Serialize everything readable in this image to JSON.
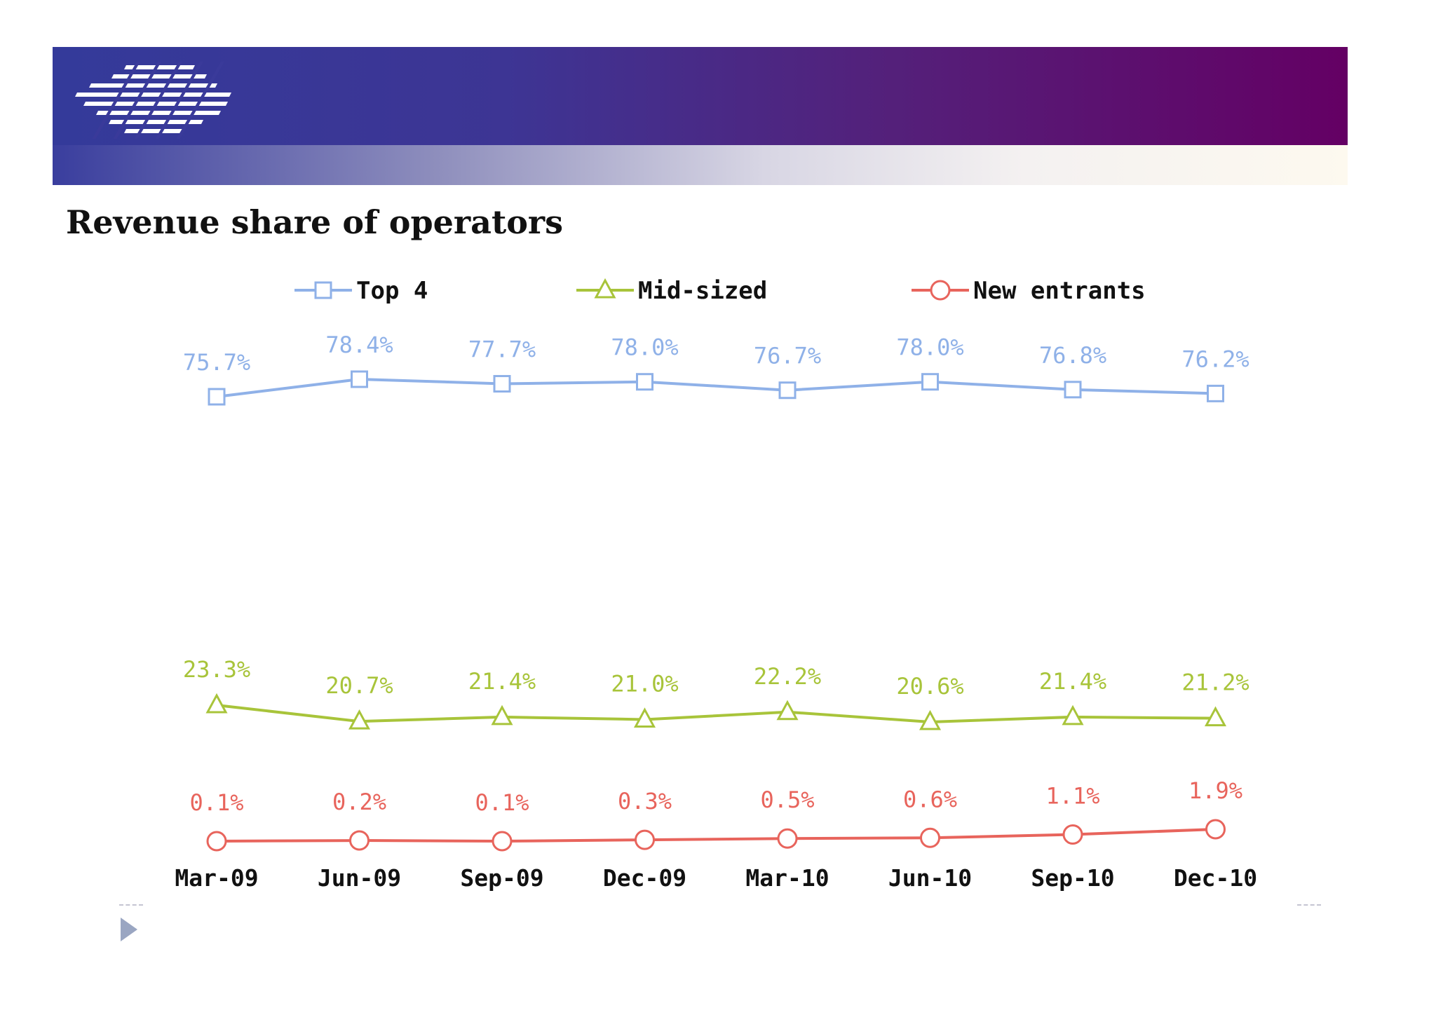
{
  "slide": {
    "title": "Revenue share of operators"
  },
  "colors": {
    "header_start": "#343a9a",
    "header_end": "#640064",
    "top4": "#8fb1e8",
    "mid_sized": "#a8c43a",
    "new_entrants": "#e8645c"
  },
  "icons": {
    "logo": "striped-diamond-logo",
    "bullet": "triangle-bullet-icon"
  },
  "chart_data": {
    "type": "line",
    "title": "",
    "xlabel": "",
    "ylabel": "",
    "ylim": [
      0,
      80
    ],
    "grid": false,
    "legend_position": "top",
    "categories": [
      "Mar-09",
      "Jun-09",
      "Sep-09",
      "Dec-09",
      "Mar-10",
      "Jun-10",
      "Sep-10",
      "Dec-10"
    ],
    "series": [
      {
        "name": "Top 4",
        "marker": "square",
        "color": "#8fb1e8",
        "values": [
          75.7,
          78.4,
          77.7,
          78.0,
          76.7,
          78.0,
          76.8,
          76.2
        ],
        "labels": [
          "75.7%",
          "78.4%",
          "77.7%",
          "78.0%",
          "76.7%",
          "78.0%",
          "76.8%",
          "76.2%"
        ]
      },
      {
        "name": "Mid-sized",
        "marker": "triangle",
        "color": "#a8c43a",
        "values": [
          23.3,
          20.7,
          21.4,
          21.0,
          22.2,
          20.6,
          21.4,
          21.2
        ],
        "labels": [
          "23.3%",
          "20.7%",
          "21.4%",
          "21.0%",
          "22.2%",
          "20.6%",
          "21.4%",
          "21.2%"
        ]
      },
      {
        "name": "New entrants",
        "marker": "circle",
        "color": "#e8645c",
        "values": [
          0.1,
          0.2,
          0.1,
          0.3,
          0.5,
          0.6,
          1.1,
          1.9
        ],
        "labels": [
          "0.1%",
          "0.2%",
          "0.1%",
          "0.3%",
          "0.5%",
          "0.6%",
          "1.1%",
          "1.9%"
        ]
      }
    ]
  }
}
